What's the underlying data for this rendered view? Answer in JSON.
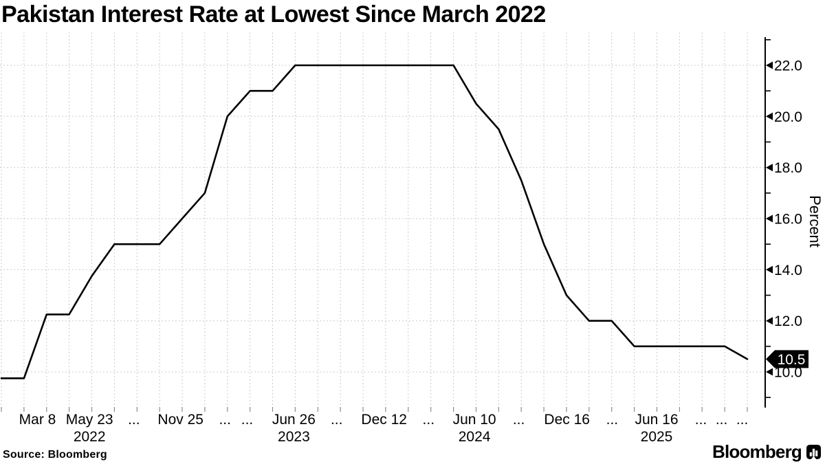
{
  "title": "Pakistan Interest Rate at Lowest Since March 2022",
  "source_label": "Source: Bloomberg",
  "brand": {
    "wordmark": "Bloomberg"
  },
  "chart_data": {
    "type": "line",
    "title": "Pakistan Interest Rate at Lowest Since March 2022",
    "xlabel": "",
    "ylabel": "Percent",
    "ylim": [
      8.6,
      23.2
    ],
    "grid": true,
    "legend": "none",
    "colors": {
      "line": "#000000",
      "grid": "#cbcbcb",
      "axis": "#000000",
      "x_tick_stub": "#8a8a8a",
      "badge_background": "#000000",
      "badge_text": "#ffffff"
    },
    "values": [
      9.75,
      9.75,
      12.25,
      12.25,
      13.75,
      15.0,
      15.0,
      15.0,
      16.0,
      17.0,
      20.0,
      21.0,
      21.0,
      22.0,
      22.0,
      22.0,
      22.0,
      22.0,
      22.0,
      22.0,
      22.0,
      20.5,
      19.5,
      17.5,
      15.0,
      13.0,
      12.0,
      12.0,
      11.0,
      11.0,
      11.0,
      11.0,
      11.0,
      10.5
    ],
    "y_major_ticks": [
      {
        "label": "10.0",
        "value": 10
      },
      {
        "label": "12.0",
        "value": 12
      },
      {
        "label": "14.0",
        "value": 14
      },
      {
        "label": "16.0",
        "value": 16
      },
      {
        "label": "18.0",
        "value": 18
      },
      {
        "label": "20.0",
        "value": 20
      },
      {
        "label": "22.0",
        "value": 22
      }
    ],
    "y_minor_tick_values": [
      9,
      11,
      13,
      15,
      17,
      19,
      21,
      23
    ],
    "x_ticks": [
      {
        "label": "Mar 8",
        "pos": 0.049
      },
      {
        "label": "May 23",
        "pos": 0.117
      },
      {
        "label": "...",
        "pos": 0.175
      },
      {
        "label": "Nov 25",
        "pos": 0.236
      },
      {
        "label": "...",
        "pos": 0.294
      },
      {
        "label": "...",
        "pos": 0.323
      },
      {
        "label": "Jun 26",
        "pos": 0.384
      },
      {
        "label": "...",
        "pos": 0.44
      },
      {
        "label": "Dec 12",
        "pos": 0.502
      },
      {
        "label": "...",
        "pos": 0.56
      },
      {
        "label": "Jun 10",
        "pos": 0.62
      },
      {
        "label": "...",
        "pos": 0.678
      },
      {
        "label": "Dec 16",
        "pos": 0.741
      },
      {
        "label": "...",
        "pos": 0.8
      },
      {
        "label": "Jun 16",
        "pos": 0.858
      },
      {
        "label": "...",
        "pos": 0.916
      },
      {
        "label": "...",
        "pos": 0.943
      },
      {
        "label": "...",
        "pos": 0.97
      }
    ],
    "x_years": [
      {
        "label": "2022",
        "pos": 0.117
      },
      {
        "label": "2023",
        "pos": 0.384
      },
      {
        "label": "2024",
        "pos": 0.62
      },
      {
        "label": "2025",
        "pos": 0.858
      }
    ],
    "end_label": {
      "text": "10.5",
      "value": 10.5
    }
  }
}
